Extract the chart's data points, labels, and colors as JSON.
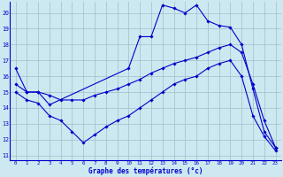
{
  "title": "Graphe des températures (°c)",
  "background_color": "#cde8f0",
  "line_color": "#0000cc",
  "grid_color": "#9bbfcc",
  "xlim": [
    -0.5,
    23.5
  ],
  "ylim": [
    10.7,
    20.7
  ],
  "yticks": [
    11,
    12,
    13,
    14,
    15,
    16,
    17,
    18,
    19,
    20
  ],
  "xticks": [
    0,
    1,
    2,
    3,
    4,
    5,
    6,
    7,
    8,
    9,
    10,
    11,
    12,
    13,
    14,
    15,
    16,
    17,
    18,
    19,
    20,
    21,
    22,
    23
  ],
  "series": [
    {
      "x": [
        0,
        1,
        2,
        3,
        10,
        11,
        12,
        13,
        14,
        15,
        16,
        17,
        18,
        19,
        20,
        21,
        22,
        23
      ],
      "y": [
        16.5,
        15.0,
        15.0,
        14.2,
        16.5,
        18.5,
        18.5,
        20.5,
        20.3,
        20.0,
        20.5,
        19.5,
        19.2,
        19.1,
        18.0,
        15.2,
        12.5,
        11.5
      ]
    },
    {
      "x": [
        0,
        1,
        2,
        3,
        4,
        5,
        6,
        7,
        8,
        9,
        10,
        11,
        12,
        13,
        14,
        15,
        16,
        17,
        18,
        19,
        20,
        21,
        22,
        23
      ],
      "y": [
        15.5,
        15.0,
        15.0,
        14.8,
        14.5,
        14.5,
        14.5,
        14.8,
        15.0,
        15.2,
        15.5,
        15.8,
        16.2,
        16.5,
        16.8,
        17.0,
        17.2,
        17.5,
        17.8,
        18.0,
        17.5,
        15.5,
        13.2,
        11.5
      ]
    },
    {
      "x": [
        0,
        1,
        2,
        3,
        4,
        5,
        6,
        7,
        8,
        9,
        10,
        11,
        12,
        13,
        14,
        15,
        16,
        17,
        18,
        19,
        20,
        21,
        22,
        23
      ],
      "y": [
        15.0,
        14.5,
        14.3,
        13.5,
        13.2,
        12.5,
        11.8,
        12.3,
        12.8,
        13.2,
        13.5,
        14.0,
        14.5,
        15.0,
        15.5,
        15.8,
        16.0,
        16.5,
        16.8,
        17.0,
        16.0,
        13.5,
        12.2,
        11.3
      ]
    }
  ]
}
